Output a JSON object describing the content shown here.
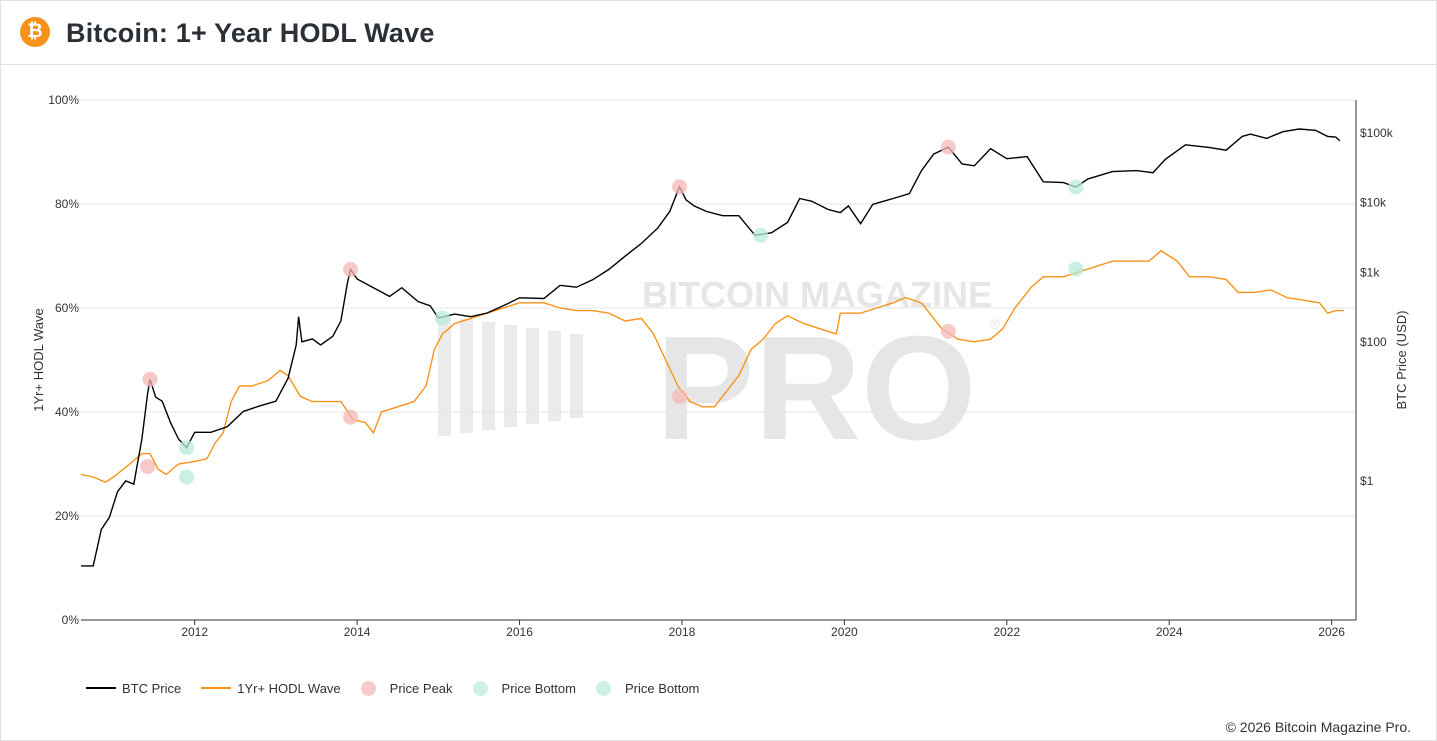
{
  "header": {
    "title": "Bitcoin: 1+ Year HODL Wave",
    "logo_symbol": "₿"
  },
  "footer": {
    "copyright": "© 2026 Bitcoin Magazine Pro."
  },
  "watermark": {
    "line1": "BITCOIN MAGAZINE",
    "line2": "PRO",
    "mark": "®"
  },
  "colors": {
    "price": "#000000",
    "hodl": "#f7931a",
    "peak": "#f6b7b7",
    "bottom": "#b7ebd8",
    "grid": "#e6e6e6",
    "brand": "#f7931a"
  },
  "chart_data": {
    "type": "line",
    "title": "Bitcoin: 1+ Year HODL Wave",
    "x_ticks": [
      "2012",
      "2014",
      "2016",
      "2018",
      "2020",
      "2022",
      "2024",
      "2026"
    ],
    "x_range": [
      2010.6,
      2026.3
    ],
    "y_left": {
      "label": "1Yr+ HODL Wave",
      "ticks": [
        "0%",
        "20%",
        "40%",
        "60%",
        "80%",
        "100%"
      ],
      "range": [
        0,
        100
      ]
    },
    "y_right": {
      "label": "BTC Price (USD)",
      "scale": "log",
      "ticks": [
        "$1",
        "$100",
        "$1k",
        "$10k",
        "$100k"
      ],
      "tick_values": [
        1,
        100,
        1000,
        10000,
        100000
      ],
      "range": [
        0.01,
        300000
      ]
    },
    "series": [
      {
        "name": "BTC Price",
        "axis": "right",
        "points": [
          [
            2010.6,
            0.06
          ],
          [
            2010.75,
            0.06
          ],
          [
            2010.85,
            0.2
          ],
          [
            2010.95,
            0.3
          ],
          [
            2011.05,
            0.7
          ],
          [
            2011.15,
            1
          ],
          [
            2011.25,
            0.9
          ],
          [
            2011.35,
            4
          ],
          [
            2011.42,
            18
          ],
          [
            2011.45,
            29
          ],
          [
            2011.52,
            16
          ],
          [
            2011.6,
            14
          ],
          [
            2011.7,
            7
          ],
          [
            2011.8,
            4
          ],
          [
            2011.9,
            3
          ],
          [
            2012.0,
            5
          ],
          [
            2012.2,
            5
          ],
          [
            2012.4,
            6
          ],
          [
            2012.6,
            10
          ],
          [
            2012.8,
            12
          ],
          [
            2013.0,
            14
          ],
          [
            2013.15,
            30
          ],
          [
            2013.25,
            90
          ],
          [
            2013.28,
            230
          ],
          [
            2013.32,
            100
          ],
          [
            2013.45,
            110
          ],
          [
            2013.55,
            90
          ],
          [
            2013.7,
            120
          ],
          [
            2013.8,
            200
          ],
          [
            2013.88,
            700
          ],
          [
            2013.92,
            1100
          ],
          [
            2014.0,
            800
          ],
          [
            2014.2,
            600
          ],
          [
            2014.4,
            450
          ],
          [
            2014.55,
            600
          ],
          [
            2014.75,
            380
          ],
          [
            2014.9,
            330
          ],
          [
            2015.0,
            220
          ],
          [
            2015.2,
            250
          ],
          [
            2015.4,
            230
          ],
          [
            2015.6,
            260
          ],
          [
            2015.8,
            330
          ],
          [
            2016.0,
            430
          ],
          [
            2016.3,
            420
          ],
          [
            2016.5,
            650
          ],
          [
            2016.7,
            610
          ],
          [
            2016.9,
            780
          ],
          [
            2017.1,
            1100
          ],
          [
            2017.3,
            1700
          ],
          [
            2017.5,
            2600
          ],
          [
            2017.7,
            4300
          ],
          [
            2017.85,
            7500
          ],
          [
            2017.97,
            17000
          ],
          [
            2018.05,
            11000
          ],
          [
            2018.15,
            9000
          ],
          [
            2018.3,
            7500
          ],
          [
            2018.5,
            6500
          ],
          [
            2018.7,
            6500
          ],
          [
            2018.9,
            3400
          ],
          [
            2019.1,
            3700
          ],
          [
            2019.3,
            5200
          ],
          [
            2019.45,
            11500
          ],
          [
            2019.6,
            10500
          ],
          [
            2019.8,
            8000
          ],
          [
            2019.95,
            7200
          ],
          [
            2020.05,
            9000
          ],
          [
            2020.2,
            5000
          ],
          [
            2020.35,
            9500
          ],
          [
            2020.6,
            11500
          ],
          [
            2020.8,
            13500
          ],
          [
            2020.95,
            29000
          ],
          [
            2021.1,
            50000
          ],
          [
            2021.28,
            63000
          ],
          [
            2021.45,
            36000
          ],
          [
            2021.6,
            34000
          ],
          [
            2021.8,
            60000
          ],
          [
            2022.0,
            43000
          ],
          [
            2022.25,
            46000
          ],
          [
            2022.45,
            20000
          ],
          [
            2022.7,
            19500
          ],
          [
            2022.85,
            16800
          ],
          [
            2023.0,
            22000
          ],
          [
            2023.3,
            28000
          ],
          [
            2023.6,
            29000
          ],
          [
            2023.8,
            27000
          ],
          [
            2023.95,
            42000
          ],
          [
            2024.2,
            68000
          ],
          [
            2024.5,
            62000
          ],
          [
            2024.7,
            57000
          ],
          [
            2024.9,
            90000
          ],
          [
            2025.0,
            97000
          ],
          [
            2025.2,
            84000
          ],
          [
            2025.4,
            105000
          ],
          [
            2025.6,
            115000
          ],
          [
            2025.8,
            110000
          ],
          [
            2025.95,
            90000
          ],
          [
            2026.05,
            88000
          ],
          [
            2026.1,
            78000
          ]
        ]
      },
      {
        "name": "1Yr+ HODL Wave",
        "axis": "left",
        "points": [
          [
            2010.6,
            28
          ],
          [
            2010.75,
            27.5
          ],
          [
            2010.9,
            26.5
          ],
          [
            2011.0,
            27.5
          ],
          [
            2011.2,
            30
          ],
          [
            2011.35,
            32
          ],
          [
            2011.45,
            32
          ],
          [
            2011.55,
            29
          ],
          [
            2011.65,
            28
          ],
          [
            2011.8,
            30
          ],
          [
            2012.0,
            30.5
          ],
          [
            2012.15,
            31
          ],
          [
            2012.25,
            34
          ],
          [
            2012.35,
            36
          ],
          [
            2012.45,
            42
          ],
          [
            2012.55,
            45
          ],
          [
            2012.7,
            45
          ],
          [
            2012.9,
            46
          ],
          [
            2013.05,
            48
          ],
          [
            2013.15,
            47
          ],
          [
            2013.3,
            43
          ],
          [
            2013.45,
            42
          ],
          [
            2013.6,
            42
          ],
          [
            2013.8,
            42
          ],
          [
            2013.95,
            38.5
          ],
          [
            2014.1,
            38
          ],
          [
            2014.2,
            36
          ],
          [
            2014.3,
            40
          ],
          [
            2014.5,
            41
          ],
          [
            2014.7,
            42
          ],
          [
            2014.85,
            45
          ],
          [
            2014.95,
            52
          ],
          [
            2015.05,
            55
          ],
          [
            2015.2,
            57
          ],
          [
            2015.4,
            58
          ],
          [
            2015.6,
            59
          ],
          [
            2015.8,
            60
          ],
          [
            2016.0,
            61
          ],
          [
            2016.3,
            61
          ],
          [
            2016.5,
            60
          ],
          [
            2016.7,
            59.5
          ],
          [
            2016.9,
            59.5
          ],
          [
            2017.1,
            59
          ],
          [
            2017.3,
            57.5
          ],
          [
            2017.5,
            58
          ],
          [
            2017.65,
            55
          ],
          [
            2017.8,
            50
          ],
          [
            2017.95,
            45
          ],
          [
            2018.1,
            42
          ],
          [
            2018.25,
            41
          ],
          [
            2018.4,
            41
          ],
          [
            2018.55,
            44
          ],
          [
            2018.7,
            47
          ],
          [
            2018.85,
            52
          ],
          [
            2019.0,
            54
          ],
          [
            2019.15,
            57
          ],
          [
            2019.3,
            58.5
          ],
          [
            2019.5,
            57
          ],
          [
            2019.7,
            56
          ],
          [
            2019.9,
            55
          ],
          [
            2019.95,
            59
          ],
          [
            2020.2,
            59
          ],
          [
            2020.4,
            60
          ],
          [
            2020.6,
            61
          ],
          [
            2020.75,
            62
          ],
          [
            2020.95,
            61
          ],
          [
            2021.05,
            59
          ],
          [
            2021.2,
            56
          ],
          [
            2021.4,
            54
          ],
          [
            2021.6,
            53.5
          ],
          [
            2021.8,
            54
          ],
          [
            2021.95,
            56
          ],
          [
            2022.1,
            60
          ],
          [
            2022.3,
            64
          ],
          [
            2022.45,
            66
          ],
          [
            2022.7,
            66
          ],
          [
            2022.9,
            67
          ],
          [
            2023.1,
            68
          ],
          [
            2023.3,
            69
          ],
          [
            2023.5,
            69
          ],
          [
            2023.75,
            69
          ],
          [
            2023.9,
            71
          ],
          [
            2024.1,
            69
          ],
          [
            2024.25,
            66
          ],
          [
            2024.5,
            66
          ],
          [
            2024.7,
            65.5
          ],
          [
            2024.85,
            63
          ],
          [
            2025.05,
            63
          ],
          [
            2025.25,
            63.5
          ],
          [
            2025.45,
            62
          ],
          [
            2025.65,
            61.5
          ],
          [
            2025.85,
            61
          ],
          [
            2025.95,
            59
          ],
          [
            2026.05,
            59.5
          ],
          [
            2026.15,
            59.5
          ]
        ]
      },
      {
        "name": "Price Peak",
        "type": "marker",
        "color": "peak",
        "x": [
          2011.45,
          2013.92,
          2017.97,
          2021.28,
          2011.42,
          2013.92,
          2017.97,
          2021.28
        ],
        "y": [
          29,
          1100,
          17000,
          63000,
          29.5,
          39,
          43,
          55.5
        ],
        "axis": [
          "right",
          "right",
          "right",
          "right",
          "left",
          "left",
          "left",
          "left"
        ]
      },
      {
        "name": "Price Bottom",
        "type": "marker",
        "color": "bottom",
        "x": [
          2011.9,
          2015.05,
          2018.97,
          2022.85,
          2011.9,
          2022.85
        ],
        "y": [
          3,
          220,
          3400,
          16800,
          27.5,
          67.5
        ],
        "axis": [
          "right",
          "right",
          "right",
          "right",
          "left",
          "left"
        ]
      },
      {
        "name": "Price Bottom",
        "type": "marker",
        "color": "bottom",
        "x": [],
        "y": []
      }
    ],
    "legend": [
      "BTC Price",
      "1Yr+ HODL Wave",
      "Price Peak",
      "Price Bottom",
      "Price Bottom"
    ],
    "legend_position": "bottom-left"
  }
}
